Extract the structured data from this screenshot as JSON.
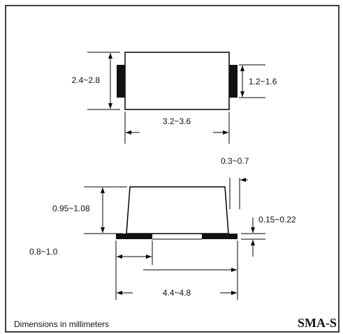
{
  "top_view": {
    "body_width": "2.4~2.8",
    "terminal_width": "1.2~1.6",
    "body_length": "3.2~3.6"
  },
  "side_view": {
    "lead_inset": "0.3~0.7",
    "body_height": "0.95~1.08",
    "lead_thickness": "0.15~0.22",
    "lead_length": "0.8~1.0",
    "overall_length": "4.4~4.8"
  },
  "footer": "Dimensions in millimeters",
  "package": "SMA-S"
}
